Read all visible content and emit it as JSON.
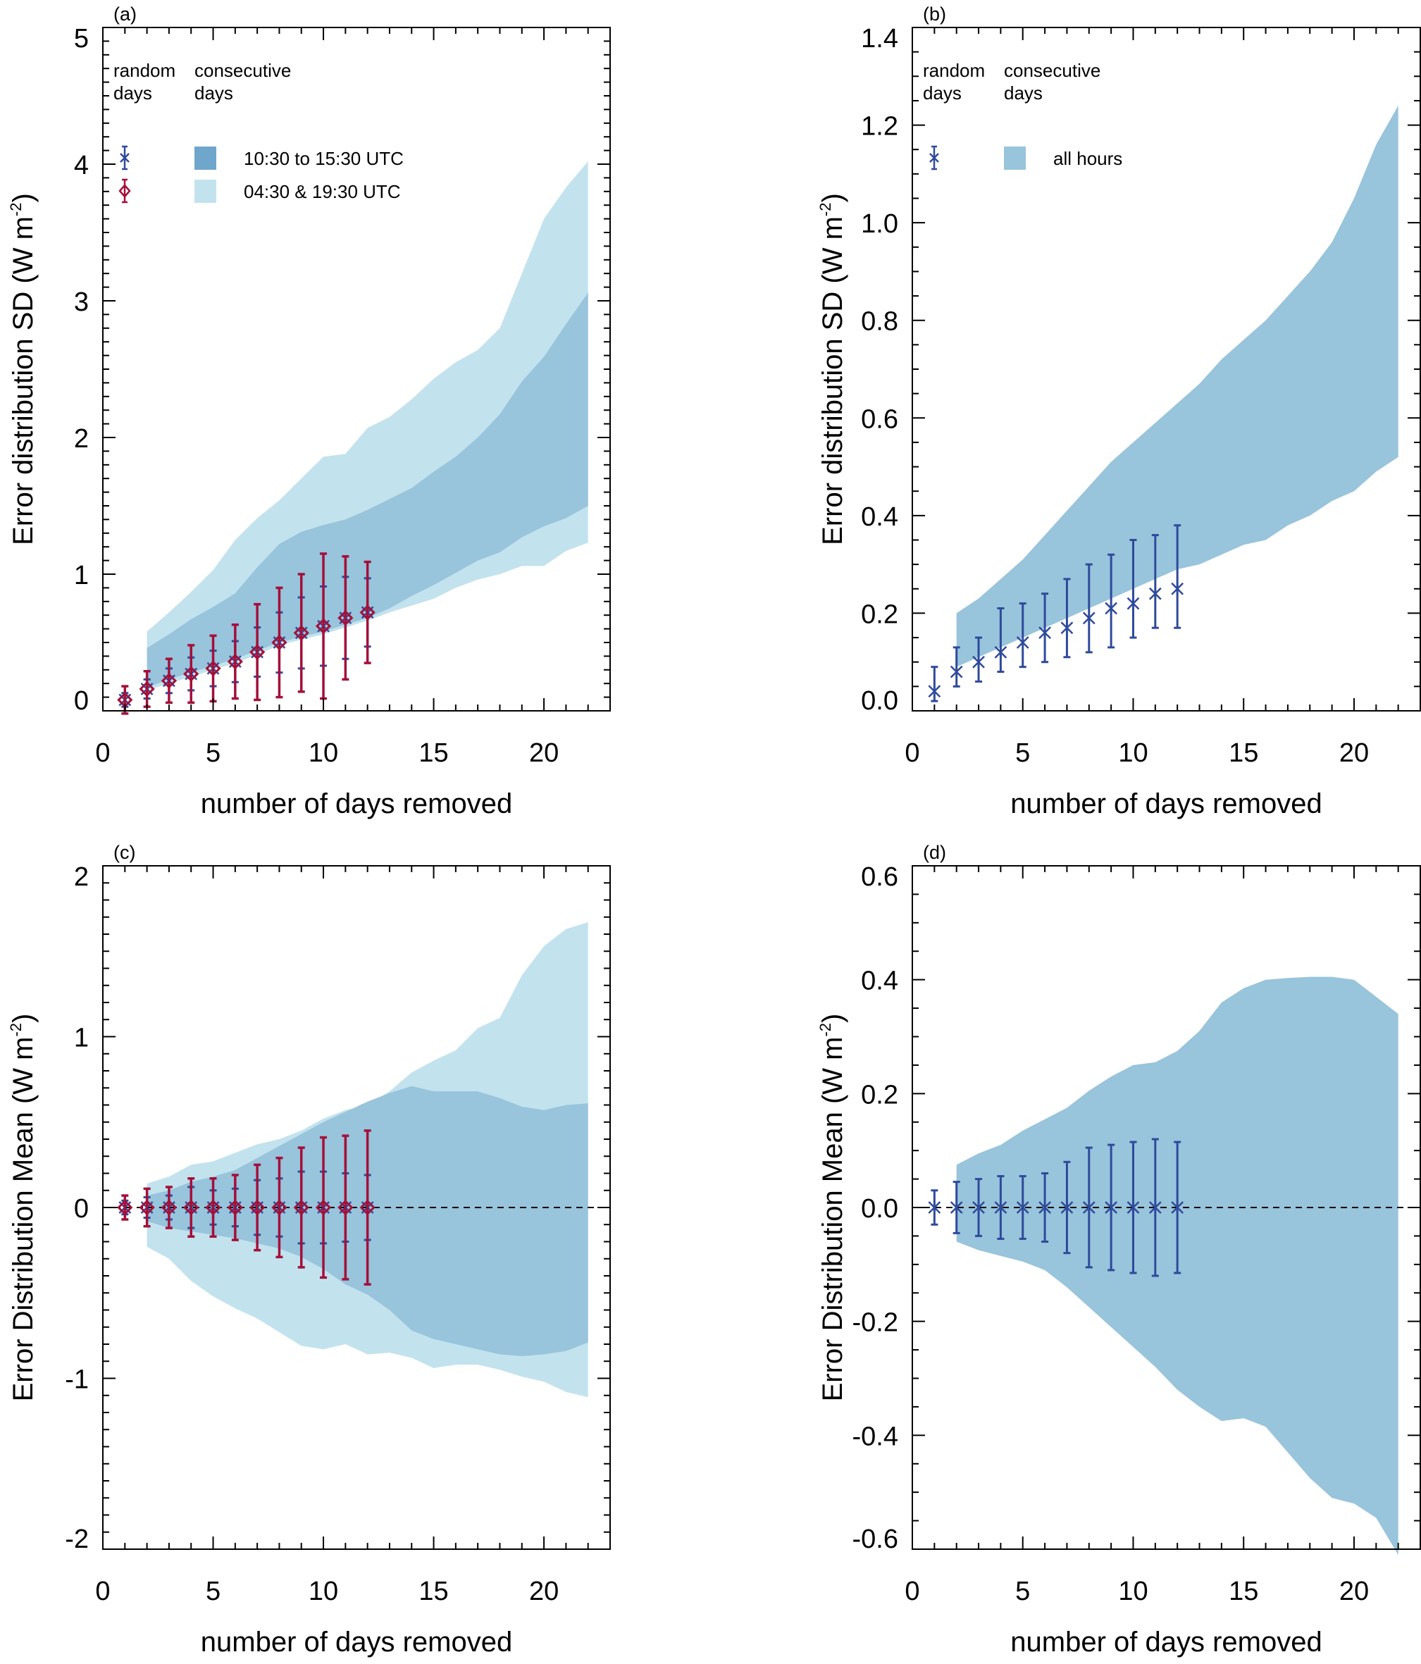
{
  "colors": {
    "band_dark": "#98c4dc",
    "band_dark_legend": "#6fa6cc",
    "band_light": "#c2e3ed",
    "random_blue": "#2e4a9a",
    "random_red": "#a3103a",
    "axis": "#000000",
    "zero_line": "#000000"
  },
  "chart_data": [
    {
      "id": "a",
      "panel_label": "(a)",
      "type": "area",
      "xlabel": "number of days removed",
      "ylabel": "Error distribution SD (W m",
      "ylabel_sup": "-2",
      "ylabel_close": ")",
      "xlim": [
        0,
        23
      ],
      "ylim": [
        0,
        5
      ],
      "xticks": [
        0,
        5,
        10,
        15,
        20
      ],
      "xtick_labels": [
        "0",
        "5",
        "10",
        "15",
        "20"
      ],
      "xminor": 1,
      "yticks": [
        0,
        1,
        2,
        3,
        4,
        5
      ],
      "ytick_labels": [
        "0",
        "1",
        "2",
        "3",
        "4",
        "5"
      ],
      "yminor": 0.1,
      "zero_line": false,
      "legend": {
        "col1_title": [
          "random",
          "days"
        ],
        "col2_title": [
          "consecutive",
          "days"
        ],
        "markers": [
          {
            "kind": "asterisk",
            "color": "random_blue"
          },
          {
            "kind": "diamond",
            "color": "random_red"
          }
        ],
        "patches": [
          {
            "label": "10:30 to 15:30 UTC",
            "color": "band_dark_legend"
          },
          {
            "label": "04:30 & 19:30  UTC",
            "color": "band_light"
          }
        ]
      },
      "bands": [
        {
          "name": "04:30 & 19:30 UTC (consecutive days)",
          "color": "band_light",
          "x": [
            2,
            3,
            4,
            5,
            6,
            7,
            8,
            9,
            10,
            11,
            12,
            13,
            14,
            15,
            16,
            17,
            18,
            19,
            20,
            21,
            22
          ],
          "upper": [
            0.58,
            0.72,
            0.87,
            1.03,
            1.25,
            1.41,
            1.54,
            1.7,
            1.86,
            1.88,
            2.07,
            2.15,
            2.28,
            2.43,
            2.55,
            2.64,
            2.8,
            3.2,
            3.6,
            3.83,
            4.02
          ],
          "lower": [
            0.15,
            0.2,
            0.25,
            0.3,
            0.35,
            0.41,
            0.48,
            0.52,
            0.56,
            0.61,
            0.66,
            0.72,
            0.77,
            0.82,
            0.9,
            0.96,
            1.0,
            1.06,
            1.06,
            1.17,
            1.23
          ]
        },
        {
          "name": "10:30 to 15:30 UTC (consecutive days)",
          "color": "band_dark",
          "x": [
            2,
            3,
            4,
            5,
            6,
            7,
            8,
            9,
            10,
            11,
            12,
            13,
            14,
            15,
            16,
            17,
            18,
            19,
            20,
            21,
            22
          ],
          "upper": [
            0.46,
            0.56,
            0.67,
            0.76,
            0.86,
            1.05,
            1.22,
            1.31,
            1.36,
            1.4,
            1.47,
            1.55,
            1.63,
            1.75,
            1.86,
            2.0,
            2.17,
            2.41,
            2.59,
            2.83,
            3.06
          ],
          "lower": [
            0.17,
            0.23,
            0.28,
            0.33,
            0.38,
            0.44,
            0.5,
            0.54,
            0.58,
            0.63,
            0.68,
            0.75,
            0.84,
            0.92,
            1.01,
            1.1,
            1.16,
            1.27,
            1.35,
            1.41,
            1.5
          ]
        }
      ],
      "points": [
        {
          "name": "random days 10:30 to 15:30 UTC",
          "marker": "asterisk",
          "color": "random_blue",
          "x": [
            1,
            2,
            3,
            4,
            5,
            6,
            7,
            8,
            9,
            10,
            11,
            12
          ],
          "y": [
            0.08,
            0.16,
            0.22,
            0.27,
            0.31,
            0.36,
            0.43,
            0.5,
            0.57,
            0.62,
            0.68,
            0.72
          ],
          "err": [
            0.05,
            0.07,
            0.09,
            0.12,
            0.13,
            0.15,
            0.18,
            0.22,
            0.26,
            0.29,
            0.3,
            0.25
          ]
        },
        {
          "name": "random days 04:30 & 19:30 UTC",
          "marker": "diamond",
          "color": "random_red",
          "x": [
            1,
            2,
            3,
            4,
            5,
            6,
            7,
            8,
            9,
            10,
            11,
            12
          ],
          "y": [
            0.08,
            0.16,
            0.22,
            0.27,
            0.31,
            0.36,
            0.43,
            0.5,
            0.57,
            0.62,
            0.68,
            0.72
          ],
          "err": [
            0.1,
            0.13,
            0.16,
            0.21,
            0.24,
            0.27,
            0.35,
            0.4,
            0.43,
            0.53,
            0.45,
            0.37
          ]
        }
      ]
    },
    {
      "id": "b",
      "panel_label": "(b)",
      "type": "area",
      "xlabel": "number of days removed",
      "ylabel": "Error distribution SD (W m",
      "ylabel_sup": "-2",
      "ylabel_close": ")",
      "xlim": [
        0,
        23
      ],
      "ylim": [
        0,
        1.4
      ],
      "xticks": [
        0,
        5,
        10,
        15,
        20
      ],
      "xtick_labels": [
        "0",
        "5",
        "10",
        "15",
        "20"
      ],
      "xminor": 1,
      "yticks": [
        0,
        0.2,
        0.4,
        0.6,
        0.8,
        1.0,
        1.2,
        1.4
      ],
      "ytick_labels": [
        "0.0",
        "0.2",
        "0.4",
        "0.6",
        "0.8",
        "1.0",
        "1.2",
        "1.4"
      ],
      "yminor": 0.05,
      "zero_line": false,
      "legend": {
        "col1_title": [
          "random",
          "days"
        ],
        "col2_title": [
          "consecutive",
          "days"
        ],
        "markers": [
          {
            "kind": "asterisk",
            "color": "random_blue"
          }
        ],
        "patches": [
          {
            "label": "all hours",
            "color": "band_dark"
          }
        ]
      },
      "bands": [
        {
          "name": "all hours (consecutive days)",
          "color": "band_dark",
          "x": [
            2,
            3,
            4,
            5,
            6,
            7,
            8,
            9,
            10,
            11,
            12,
            13,
            14,
            15,
            16,
            17,
            18,
            19,
            20,
            21,
            22
          ],
          "upper": [
            0.2,
            0.23,
            0.27,
            0.31,
            0.36,
            0.41,
            0.46,
            0.51,
            0.55,
            0.59,
            0.63,
            0.67,
            0.72,
            0.76,
            0.8,
            0.85,
            0.9,
            0.96,
            1.05,
            1.16,
            1.24
          ],
          "lower": [
            0.09,
            0.11,
            0.13,
            0.15,
            0.17,
            0.19,
            0.21,
            0.23,
            0.25,
            0.27,
            0.29,
            0.3,
            0.32,
            0.34,
            0.35,
            0.38,
            0.4,
            0.43,
            0.45,
            0.49,
            0.52
          ]
        }
      ],
      "points": [
        {
          "name": "random days all hours",
          "marker": "asterisk",
          "color": "random_blue",
          "x": [
            1,
            2,
            3,
            4,
            5,
            6,
            7,
            8,
            9,
            10,
            11,
            12
          ],
          "y": [
            0.04,
            0.08,
            0.1,
            0.12,
            0.14,
            0.16,
            0.17,
            0.19,
            0.21,
            0.22,
            0.24,
            0.25
          ],
          "err_low": [
            0.02,
            0.05,
            0.06,
            0.08,
            0.09,
            0.1,
            0.11,
            0.12,
            0.13,
            0.15,
            0.17,
            0.17
          ],
          "err_high": [
            0.09,
            0.13,
            0.15,
            0.21,
            0.22,
            0.24,
            0.27,
            0.3,
            0.32,
            0.35,
            0.36,
            0.38
          ]
        }
      ]
    },
    {
      "id": "c",
      "panel_label": "(c)",
      "type": "area",
      "xlabel": "number of days removed",
      "ylabel": "Error Distribution Mean (W m",
      "ylabel_sup": "-2",
      "ylabel_close": ")",
      "xlim": [
        0,
        23
      ],
      "ylim": [
        -2,
        2
      ],
      "xticks": [
        0,
        5,
        10,
        15,
        20
      ],
      "xtick_labels": [
        "0",
        "5",
        "10",
        "15",
        "20"
      ],
      "xminor": 1,
      "yticks": [
        -2,
        -1,
        0,
        1,
        2
      ],
      "ytick_labels": [
        "-2",
        "-1",
        "0",
        "1",
        "2"
      ],
      "yminor": 0.1,
      "zero_line": true,
      "bands": [
        {
          "name": "04:30 & 19:30 UTC (consecutive days)",
          "color": "band_light",
          "x": [
            2,
            3,
            4,
            5,
            6,
            7,
            8,
            9,
            10,
            11,
            12,
            13,
            14,
            15,
            16,
            17,
            18,
            19,
            20,
            21,
            22
          ],
          "upper": [
            0.14,
            0.18,
            0.25,
            0.27,
            0.32,
            0.37,
            0.4,
            0.45,
            0.52,
            0.57,
            0.6,
            0.68,
            0.79,
            0.86,
            0.92,
            1.05,
            1.11,
            1.36,
            1.53,
            1.63,
            1.67
          ],
          "lower": [
            -0.23,
            -0.3,
            -0.43,
            -0.52,
            -0.59,
            -0.65,
            -0.73,
            -0.81,
            -0.83,
            -0.8,
            -0.86,
            -0.85,
            -0.88,
            -0.94,
            -0.92,
            -0.92,
            -0.95,
            -0.99,
            -1.02,
            -1.08,
            -1.11
          ]
        },
        {
          "name": "10:30 to 15:30 UTC (consecutive days)",
          "color": "band_dark",
          "x": [
            2,
            3,
            4,
            5,
            6,
            7,
            8,
            9,
            10,
            11,
            12,
            13,
            14,
            15,
            16,
            17,
            18,
            19,
            20,
            21,
            22
          ],
          "upper": [
            0.07,
            0.1,
            0.15,
            0.18,
            0.22,
            0.29,
            0.36,
            0.43,
            0.5,
            0.56,
            0.62,
            0.67,
            0.71,
            0.68,
            0.68,
            0.68,
            0.64,
            0.59,
            0.57,
            0.6,
            0.61
          ],
          "lower": [
            -0.08,
            -0.12,
            -0.14,
            -0.16,
            -0.18,
            -0.21,
            -0.24,
            -0.29,
            -0.36,
            -0.45,
            -0.51,
            -0.6,
            -0.72,
            -0.77,
            -0.8,
            -0.83,
            -0.86,
            -0.87,
            -0.86,
            -0.84,
            -0.79
          ]
        }
      ],
      "points": [
        {
          "name": "random days 10:30 to 15:30 UTC",
          "marker": "asterisk",
          "color": "random_blue",
          "x": [
            1,
            2,
            3,
            4,
            5,
            6,
            7,
            8,
            9,
            10,
            11,
            12
          ],
          "y": [
            0,
            0,
            0,
            0,
            0,
            0,
            0,
            0,
            0,
            0,
            0,
            0
          ],
          "err": [
            0.04,
            0.06,
            0.07,
            0.12,
            0.1,
            0.11,
            0.16,
            0.17,
            0.21,
            0.21,
            0.2,
            0.19
          ]
        },
        {
          "name": "random days 04:30 & 19:30 UTC",
          "marker": "diamond",
          "color": "random_red",
          "x": [
            1,
            2,
            3,
            4,
            5,
            6,
            7,
            8,
            9,
            10,
            11,
            12
          ],
          "y": [
            0,
            0,
            0,
            0,
            0,
            0,
            0,
            0,
            0,
            0,
            0,
            0
          ],
          "err": [
            0.07,
            0.11,
            0.12,
            0.17,
            0.17,
            0.19,
            0.25,
            0.29,
            0.35,
            0.41,
            0.42,
            0.45
          ]
        }
      ]
    },
    {
      "id": "d",
      "panel_label": "(d)",
      "type": "area",
      "xlabel": "number of days removed",
      "ylabel": "Error Distribution Mean (W m",
      "ylabel_sup": "-2",
      "ylabel_close": ")",
      "xlim": [
        0,
        23
      ],
      "ylim": [
        -0.6,
        0.6
      ],
      "xticks": [
        0,
        5,
        10,
        15,
        20
      ],
      "xtick_labels": [
        "0",
        "5",
        "10",
        "15",
        "20"
      ],
      "xminor": 1,
      "yticks": [
        -0.6,
        -0.4,
        -0.2,
        0.0,
        0.2,
        0.4,
        0.6
      ],
      "ytick_labels": [
        "-0.6",
        "-0.4",
        "-0.2",
        "0.0",
        "0.2",
        "0.4",
        "0.6"
      ],
      "yminor": 0.05,
      "zero_line": true,
      "bands": [
        {
          "name": "all hours (consecutive days)",
          "color": "band_dark",
          "x": [
            2,
            3,
            4,
            5,
            6,
            7,
            8,
            9,
            10,
            11,
            12,
            13,
            14,
            15,
            16,
            17,
            18,
            19,
            20,
            21,
            22
          ],
          "upper": [
            0.075,
            0.095,
            0.11,
            0.135,
            0.155,
            0.175,
            0.205,
            0.23,
            0.25,
            0.255,
            0.275,
            0.31,
            0.36,
            0.385,
            0.4,
            0.403,
            0.405,
            0.405,
            0.4,
            0.37,
            0.34
          ],
          "lower": [
            -0.06,
            -0.075,
            -0.085,
            -0.095,
            -0.11,
            -0.14,
            -0.175,
            -0.21,
            -0.245,
            -0.28,
            -0.32,
            -0.35,
            -0.375,
            -0.37,
            -0.385,
            -0.43,
            -0.475,
            -0.51,
            -0.52,
            -0.545,
            -0.61
          ]
        }
      ],
      "points": [
        {
          "name": "random days all hours",
          "marker": "asterisk",
          "color": "random_blue",
          "x": [
            1,
            2,
            3,
            4,
            5,
            6,
            7,
            8,
            9,
            10,
            11,
            12
          ],
          "y": [
            0,
            0,
            0,
            0,
            0,
            0,
            0,
            0,
            0,
            0,
            0,
            0
          ],
          "err": [
            0.03,
            0.045,
            0.05,
            0.055,
            0.055,
            0.06,
            0.08,
            0.105,
            0.11,
            0.115,
            0.12,
            0.115
          ]
        }
      ]
    }
  ]
}
